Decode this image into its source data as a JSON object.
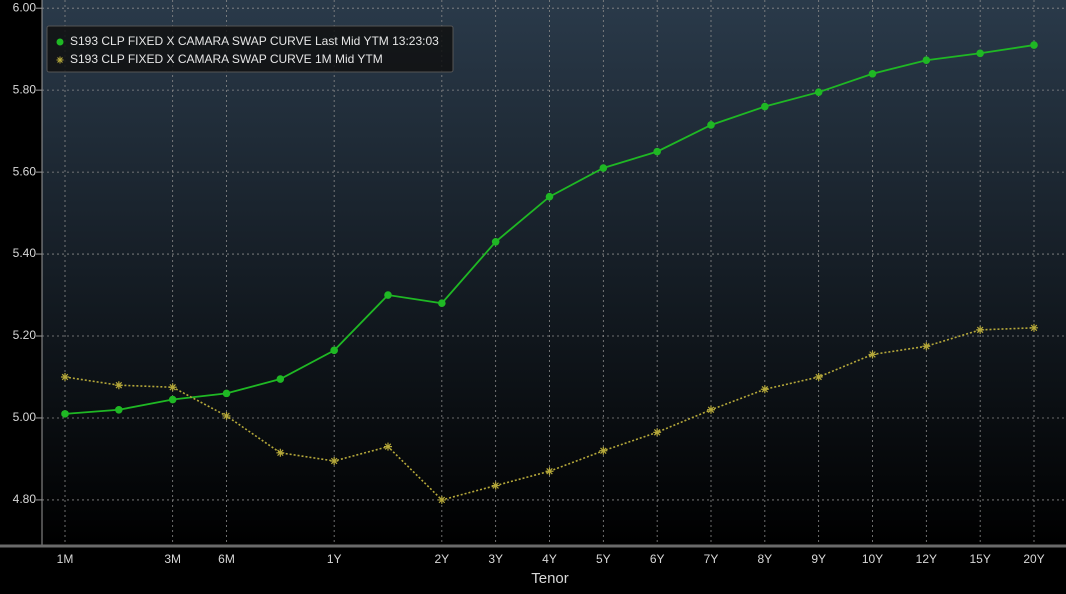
{
  "chart_data": {
    "type": "line",
    "x_label": "Tenor",
    "categories": [
      "1M",
      null,
      "3M",
      "6M",
      null,
      "1Y",
      null,
      "2Y",
      "3Y",
      "4Y",
      "5Y",
      "6Y",
      "7Y",
      "8Y",
      "9Y",
      "10Y",
      "12Y",
      "15Y",
      "20Y"
    ],
    "series": [
      {
        "name": "S193 CLP FIXED X CAMARA SWAP CURVE Last Mid YTM 13:23:03",
        "color": "#1fb824",
        "marker": "circle",
        "values": [
          5.01,
          5.02,
          5.045,
          5.06,
          5.095,
          5.165,
          5.3,
          5.28,
          5.43,
          5.54,
          5.61,
          5.65,
          5.715,
          5.76,
          5.795,
          5.84,
          5.873,
          5.89,
          5.91
        ]
      },
      {
        "name": "S193 CLP FIXED X CAMARA SWAP CURVE 1M Mid YTM",
        "color": "#b5a83a",
        "marker": "star",
        "values": [
          5.1,
          5.08,
          5.075,
          5.005,
          4.915,
          4.895,
          4.93,
          4.8,
          4.835,
          4.87,
          4.92,
          4.965,
          5.02,
          5.07,
          5.1,
          5.155,
          5.175,
          5.215,
          5.22
        ]
      }
    ],
    "ylim": [
      4.69,
      6.02
    ],
    "yticks": [
      {
        "value": 4.8,
        "label": "4.80"
      },
      {
        "value": 5.0,
        "label": "5.00"
      },
      {
        "value": 5.2,
        "label": "5.20"
      },
      {
        "value": 5.4,
        "label": "5.40"
      },
      {
        "value": 5.6,
        "label": "5.60"
      },
      {
        "value": 5.8,
        "label": "5.80"
      },
      {
        "value": 6.0,
        "label": "6.00"
      }
    ],
    "grid": true,
    "legend": "top-left"
  }
}
